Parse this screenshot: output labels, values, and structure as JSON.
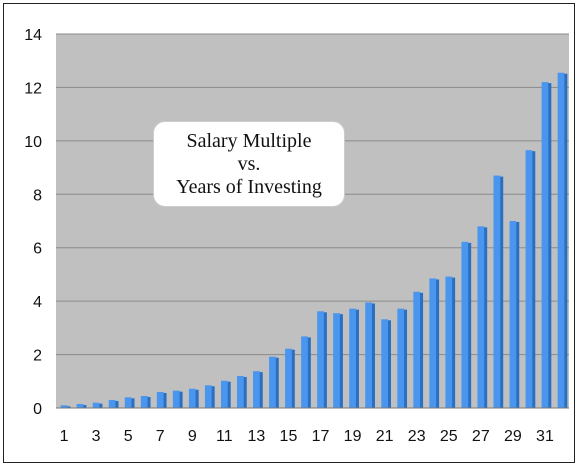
{
  "chart_data": {
    "type": "bar",
    "title": [
      "Salary Multiple",
      "vs.",
      "Years of Investing"
    ],
    "xlabel": "",
    "ylabel": "",
    "ylim": [
      0,
      14
    ],
    "yticks": [
      0,
      2,
      4,
      6,
      8,
      10,
      12,
      14
    ],
    "grid": "horizontal",
    "legend": "none",
    "categories": [
      1,
      2,
      3,
      4,
      5,
      6,
      7,
      8,
      9,
      10,
      11,
      12,
      13,
      14,
      15,
      16,
      17,
      18,
      19,
      20,
      21,
      22,
      23,
      24,
      25,
      26,
      27,
      28,
      29,
      30,
      31,
      32
    ],
    "xticks_shown": [
      1,
      3,
      5,
      7,
      9,
      11,
      13,
      15,
      17,
      19,
      21,
      23,
      25,
      27,
      29,
      31
    ],
    "series": [
      {
        "values": [
          0.1,
          0.15,
          0.2,
          0.3,
          0.4,
          0.45,
          0.6,
          0.65,
          0.72,
          0.85,
          1.02,
          1.2,
          1.38,
          1.92,
          2.22,
          2.68,
          3.62,
          3.55,
          3.72,
          3.95,
          3.32,
          3.72,
          4.35,
          4.85,
          4.92,
          6.22,
          6.8,
          8.7,
          7.0,
          9.65,
          12.2,
          12.55
        ]
      }
    ],
    "colors": {
      "bar_front": "#4a96ef",
      "bar_side": "#2b6fc0",
      "plot_bg": "#c0c0c0",
      "grid": "#8a8a8a"
    }
  }
}
